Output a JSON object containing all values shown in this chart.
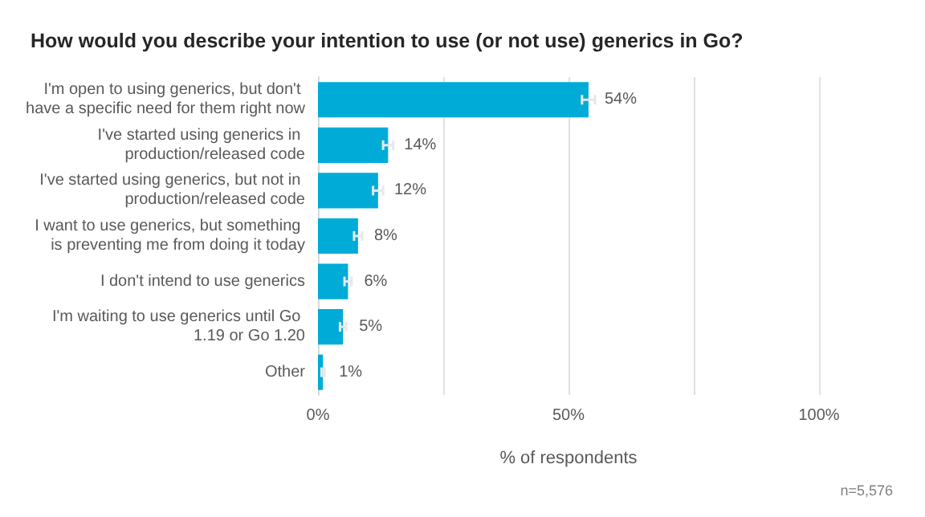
{
  "chart_data": {
    "type": "bar",
    "orientation": "horizontal",
    "title": "How would you describe your intention to use (or not use) generics in Go?",
    "xlabel": "% of respondents",
    "categories": [
      "I'm open to using generics, but don't have a specific need for them right now",
      "I've started using generics in production/released code",
      "I've started using generics, but not in production/released code",
      "I want to use generics, but something is preventing me from doing it today",
      "I don't intend to use generics",
      "I'm waiting to use generics until Go 1.19 or Go 1.20",
      "Other"
    ],
    "values": [
      54,
      14,
      12,
      8,
      6,
      5,
      1
    ],
    "errors": [
      1.3,
      1,
      1,
      0.8,
      0.7,
      0.6,
      0.3
    ],
    "value_labels": [
      "54%",
      "14%",
      "12%",
      "8%",
      "6%",
      "5%",
      "1%"
    ],
    "color": "#00acd7",
    "xlim": [
      0,
      100
    ],
    "xticks": [
      {
        "value": 0,
        "label": "0%"
      },
      {
        "value": 25,
        "label": null
      },
      {
        "value": 50,
        "label": "50%"
      },
      {
        "value": 75,
        "label": null
      },
      {
        "value": 100,
        "label": "100%"
      }
    ],
    "grid": "x",
    "annotations": [
      "n=5,576"
    ]
  }
}
